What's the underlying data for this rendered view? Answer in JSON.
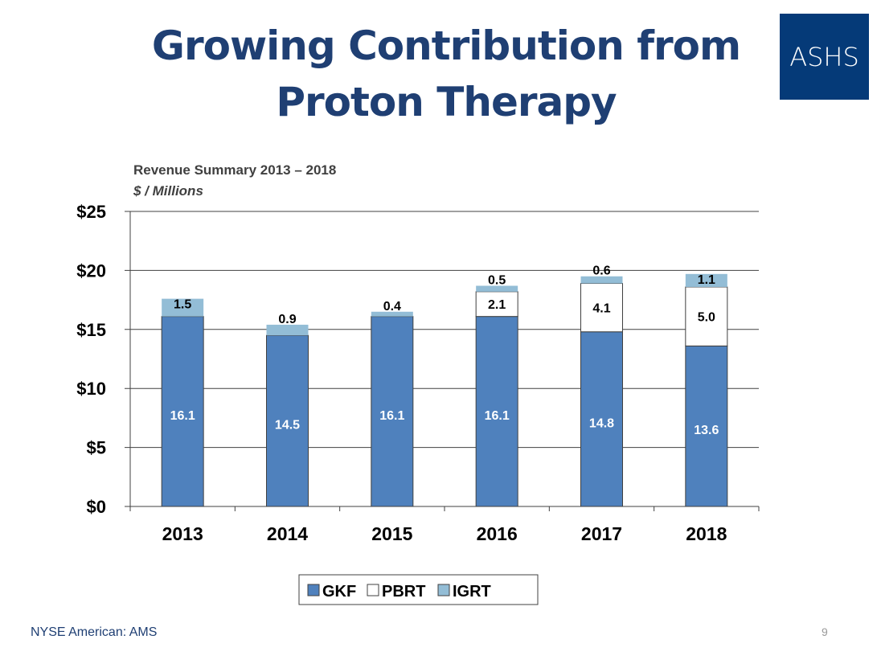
{
  "slide": {
    "title_line1": "Growing Contribution from",
    "title_line2": "Proton Therapy",
    "logo_text": "ASHS",
    "footer": "NYSE American: AMS",
    "page_number": "9"
  },
  "chart_data": {
    "type": "bar",
    "stacked": true,
    "title": "Revenue Summary 2013 – 2018",
    "subtitle": "$ / Millions",
    "xlabel": "",
    "ylabel": "",
    "categories": [
      "2013",
      "2014",
      "2015",
      "2016",
      "2017",
      "2018"
    ],
    "ylim": [
      0,
      25
    ],
    "yticks": [
      0,
      5,
      10,
      15,
      20,
      25
    ],
    "ytick_labels": [
      "$0",
      "$5",
      "$10",
      "$15",
      "$20",
      "$25"
    ],
    "grid": true,
    "legend_position": "bottom-center",
    "series": [
      {
        "name": "GKF",
        "color": "#4f81bd",
        "label_color": "#ffffff",
        "values": [
          16.1,
          14.5,
          16.1,
          16.1,
          14.8,
          13.6
        ]
      },
      {
        "name": "PBRT",
        "color": "#ffffff",
        "label_color": "#000000",
        "values": [
          0,
          0,
          0,
          2.1,
          4.1,
          5.0
        ]
      },
      {
        "name": "IGRT",
        "color": "#93bdd6",
        "label_color": "#000000",
        "values": [
          1.5,
          0.9,
          0.4,
          0.5,
          0.6,
          1.1
        ]
      }
    ]
  }
}
